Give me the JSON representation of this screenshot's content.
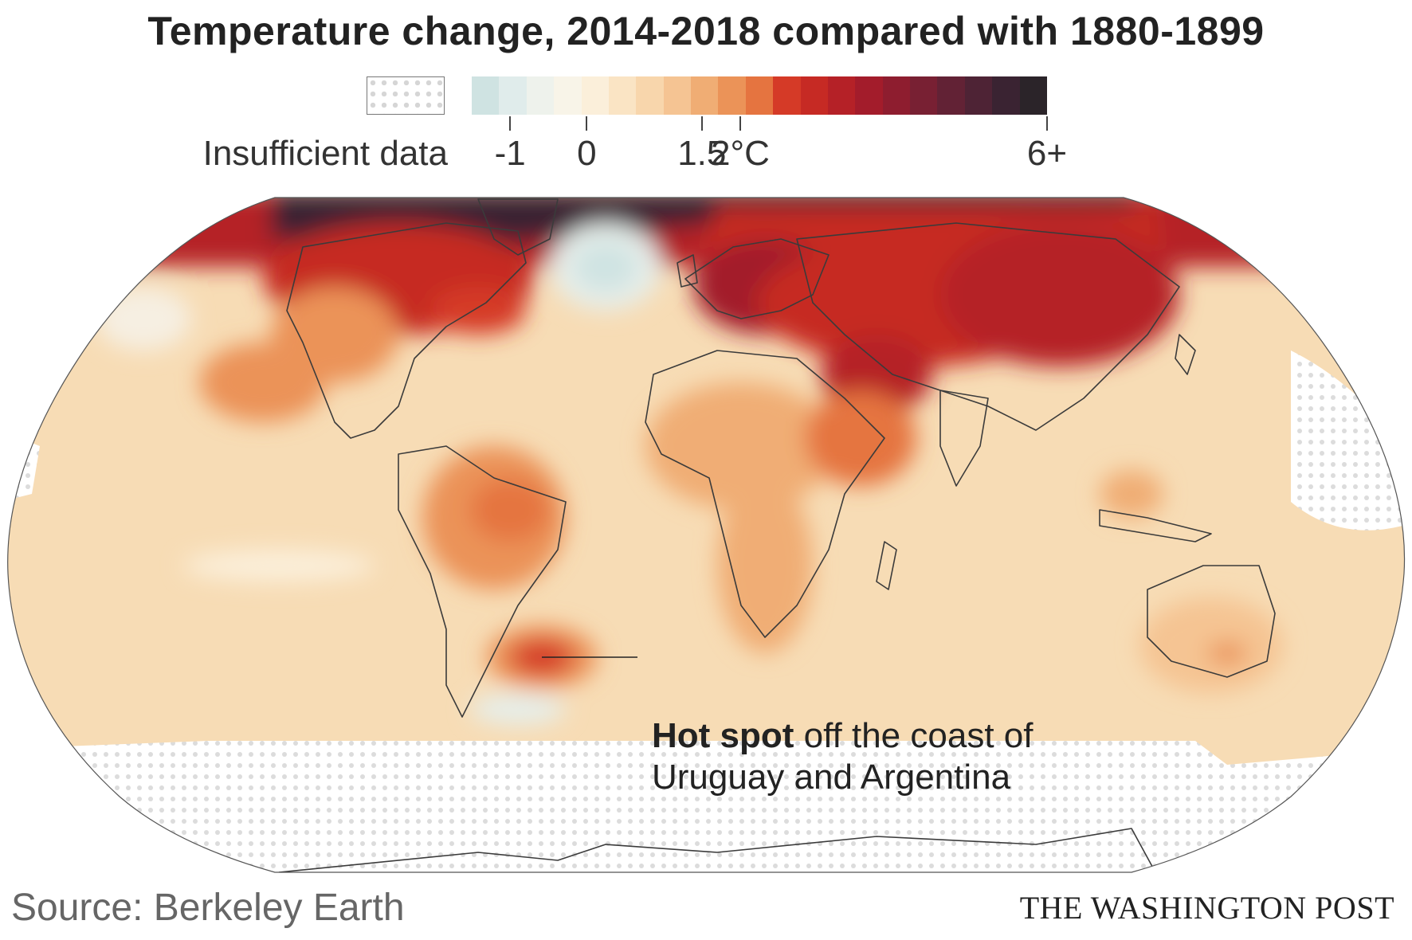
{
  "title": "Temperature change, 2014-2018 compared with 1880-1899",
  "legend": {
    "no_data_label": "Insufficient data",
    "ticks": [
      {
        "value": -1,
        "label": "-1"
      },
      {
        "value": 0,
        "label": "0"
      },
      {
        "value": 1.5,
        "label": "1.5"
      },
      {
        "value": 2,
        "label": "2°C"
      },
      {
        "value": 6,
        "label": "6+"
      }
    ],
    "range": [
      -1.5,
      6
    ],
    "colors": [
      "#cfe3e2",
      "#e0eceb",
      "#eef2ec",
      "#f8f4e8",
      "#fbefda",
      "#fae4c4",
      "#f8d6ac",
      "#f5c493",
      "#f0ad74",
      "#eb9358",
      "#e57440",
      "#d53a27",
      "#c62a24",
      "#b52127",
      "#a31c2b",
      "#8e1d2f",
      "#782033",
      "#622235",
      "#4e2335",
      "#3a2332",
      "#2b2429"
    ]
  },
  "map": {
    "ocean_base": "#f7dcb5",
    "annotation": {
      "bold": "Hot spot",
      "text_line1": "off the coast of",
      "text_line2": "Uruguay and Argentina"
    }
  },
  "footer": {
    "source": "Source: Berkeley Earth",
    "credit": "THE WASHINGTON POST"
  }
}
